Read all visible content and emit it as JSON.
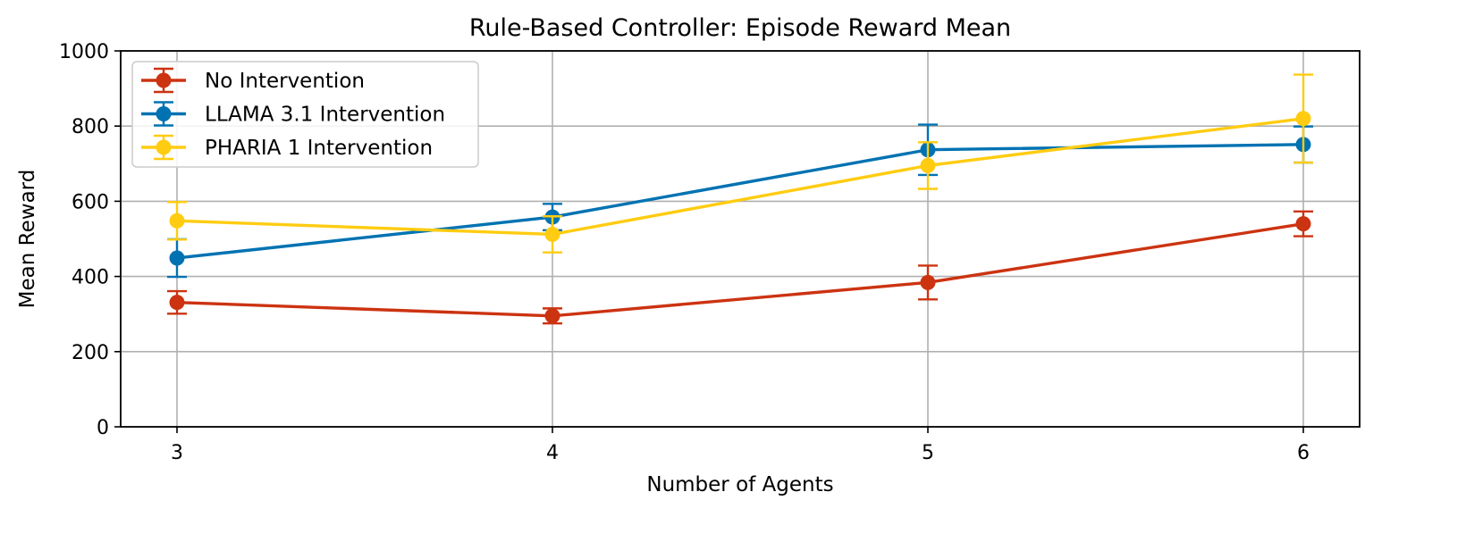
{
  "chart_data": {
    "type": "line",
    "title": "Rule-Based Controller: Episode Reward Mean",
    "xlabel": "Number of Agents",
    "ylabel": "Mean Reward",
    "x": [
      3,
      4,
      5,
      6
    ],
    "xticks": [
      "3",
      "4",
      "5",
      "6"
    ],
    "xlim": [
      2.85,
      6.15
    ],
    "ylim": [
      0,
      1000
    ],
    "yticks": [
      "0",
      "200",
      "400",
      "600",
      "800",
      "1000"
    ],
    "grid": true,
    "legend_position": "upper-left",
    "series": [
      {
        "name": "No Intervention",
        "color": "#CC3311",
        "values": [
          331,
          295,
          384,
          540
        ],
        "errors": [
          30,
          20,
          45,
          33
        ]
      },
      {
        "name": "LLAMA 3.1 Intervention",
        "color": "#0072B2",
        "values": [
          449,
          558,
          737,
          751
        ],
        "errors": [
          50,
          35,
          67,
          48
        ]
      },
      {
        "name": "PHARIA 1 Intervention",
        "color": "#FFCC11",
        "values": [
          548,
          512,
          695,
          820
        ],
        "errors": [
          50,
          48,
          62,
          117
        ]
      }
    ]
  }
}
